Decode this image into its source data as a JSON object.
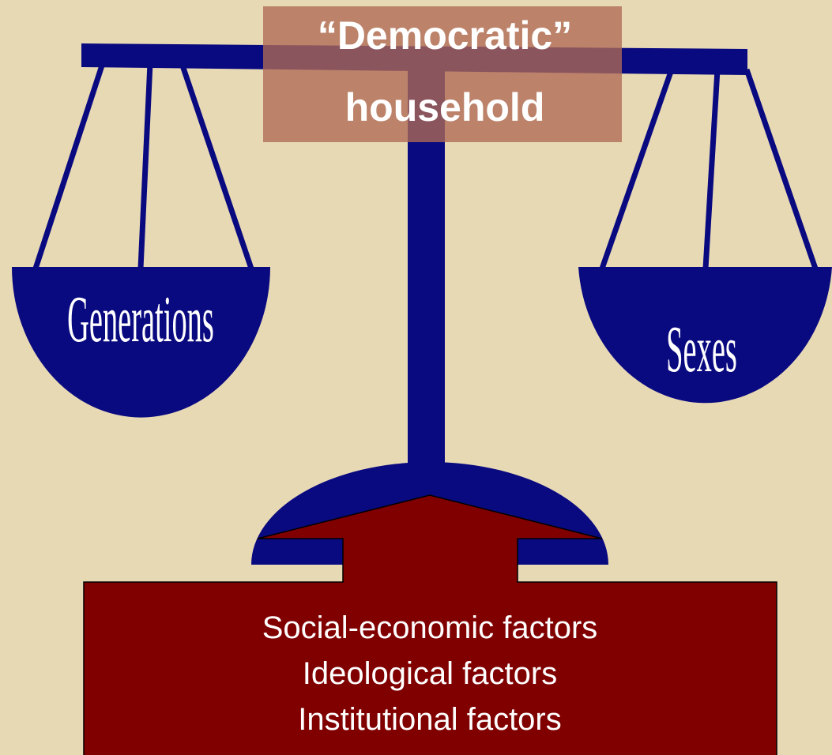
{
  "title": {
    "lines": [
      "“Democratic”",
      "household"
    ]
  },
  "left_pan": {
    "label": "Generations"
  },
  "right_pan": {
    "label": "Sexes"
  },
  "factors": {
    "lines": [
      "Social-economic factors",
      "Ideological factors",
      "Institutional factors"
    ]
  }
}
